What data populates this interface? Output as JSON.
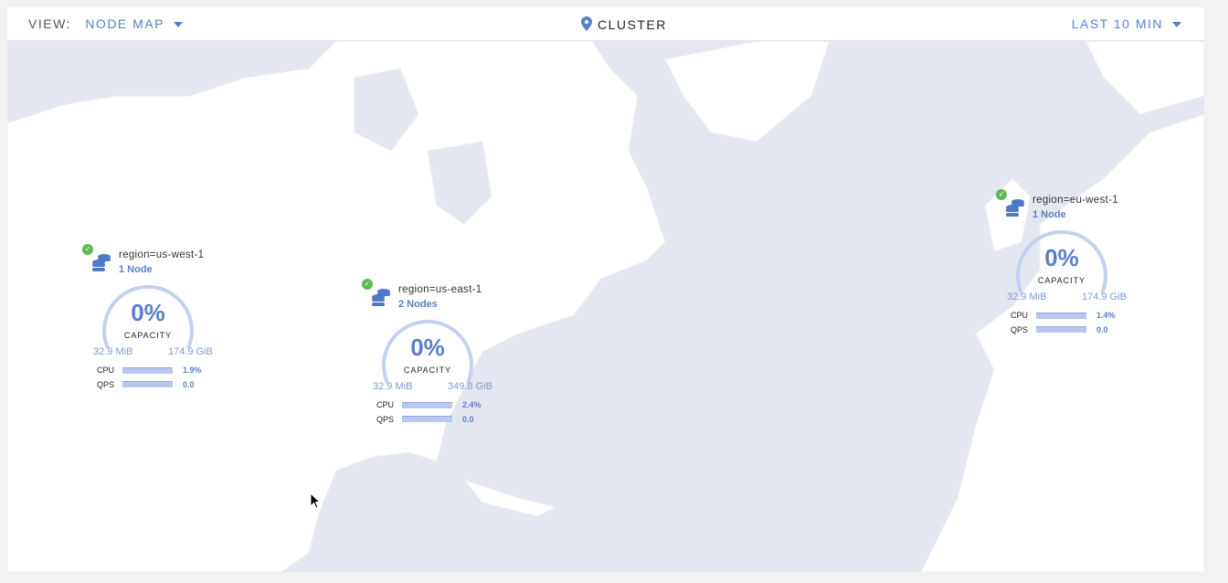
{
  "header": {
    "view_label": "VIEW:",
    "view_value": "NODE MAP",
    "location": "CLUSTER",
    "time_range": "LAST 10 MIN"
  },
  "colors": {
    "accent": "#5a7fc8",
    "healthy": "#5dba54",
    "water": "#e4e7ef",
    "land": "#ffffff"
  },
  "clusters": [
    {
      "region": "region=us-west-1",
      "nodes": "1 Node",
      "capacity_pct": "0%",
      "capacity_label": "CAPACITY",
      "used": "32.9 MiB",
      "total": "174.9 GiB",
      "cpu_label": "CPU",
      "cpu": "1.9%",
      "qps_label": "QPS",
      "qps": "0.0"
    },
    {
      "region": "region=us-east-1",
      "nodes": "2 Nodes",
      "capacity_pct": "0%",
      "capacity_label": "CAPACITY",
      "used": "32.9 MiB",
      "total": "349.8 GiB",
      "cpu_label": "CPU",
      "cpu": "2.4%",
      "qps_label": "QPS",
      "qps": "0.0"
    },
    {
      "region": "region=eu-west-1",
      "nodes": "1 Node",
      "capacity_pct": "0%",
      "capacity_label": "CAPACITY",
      "used": "32.9 MiB",
      "total": "174.9 GiB",
      "cpu_label": "CPU",
      "cpu": "1.4%",
      "qps_label": "QPS",
      "qps": "0.0"
    }
  ]
}
